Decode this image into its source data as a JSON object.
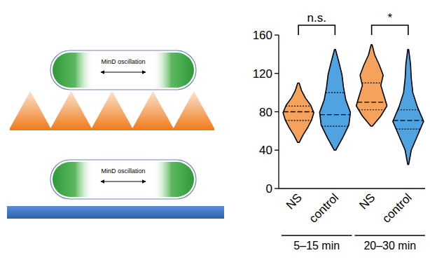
{
  "chart_data": {
    "type": "violin",
    "categories": [
      "NS",
      "control",
      "NS",
      "control"
    ],
    "colors": [
      "#f5a25d",
      "#4fa3e0",
      "#f5a25d",
      "#4fa3e0"
    ],
    "min": [
      48,
      40,
      65,
      25
    ],
    "q1": [
      71,
      65,
      82,
      62
    ],
    "median": [
      80,
      77,
      90,
      71
    ],
    "q3": [
      86,
      100,
      110,
      82
    ],
    "max": [
      110,
      145,
      150,
      145
    ],
    "density": [
      [
        0.05,
        0.3,
        0.6,
        0.85,
        1,
        0.8,
        0.45,
        0.2,
        0.05
      ],
      [
        0.05,
        0.5,
        0.9,
        1,
        0.7,
        0.55,
        0.45,
        0.25,
        0.03
      ],
      [
        0.05,
        0.6,
        1,
        0.8,
        0.6,
        0.75,
        0.5,
        0.2,
        0.03
      ],
      [
        0.03,
        0.2,
        0.6,
        1,
        0.6,
        0.3,
        0.2,
        0.15,
        0.03
      ]
    ],
    "group_labels": [
      "5–15 min",
      "20–30 min"
    ],
    "significance": [
      "n.s.",
      "*"
    ],
    "ylim": [
      0,
      160
    ],
    "yticks": [
      0,
      40,
      80,
      120,
      160
    ],
    "grid": false
  },
  "diagram": {
    "cells": [
      {
        "label": "MinD oscillation"
      },
      {
        "label": "MinD oscillation"
      }
    ]
  }
}
